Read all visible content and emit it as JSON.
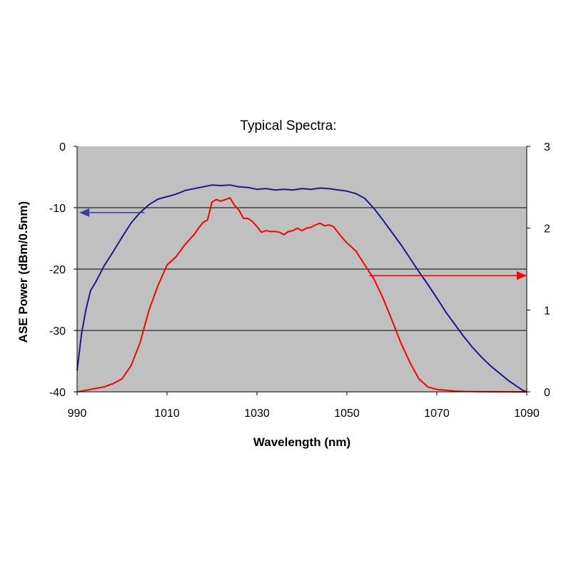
{
  "chart_data": {
    "type": "line",
    "title": "Typical Spectra:",
    "xlabel": "Wavelength (nm)",
    "ylabel": "ASE Power (dBm/0.5nm)",
    "y2label": "",
    "xlim": [
      990,
      1090
    ],
    "ylim": [
      -40,
      0
    ],
    "y2lim": [
      0,
      3
    ],
    "x_ticks": [
      990,
      1010,
      1030,
      1050,
      1070,
      1090
    ],
    "y_ticks": [
      0,
      -10,
      -20,
      -30,
      -40
    ],
    "y2_ticks": [
      3,
      2,
      1,
      0
    ],
    "grid": "horizontal",
    "plot_background": "#c0c0c0",
    "series": [
      {
        "axis": "left",
        "color": "#1a1a8c",
        "x": [
          990,
          991,
          992,
          993,
          994,
          996,
          998,
          1000,
          1002,
          1004,
          1006,
          1008,
          1010,
          1012,
          1014,
          1016,
          1018,
          1020,
          1022,
          1024,
          1026,
          1028,
          1030,
          1032,
          1034,
          1036,
          1038,
          1040,
          1042,
          1044,
          1046,
          1048,
          1050,
          1052,
          1054,
          1056,
          1058,
          1060,
          1062,
          1064,
          1066,
          1068,
          1070,
          1072,
          1074,
          1076,
          1078,
          1080,
          1082,
          1084,
          1086,
          1088,
          1089,
          1090
        ],
        "y": [
          -36.5,
          -30.5,
          -26.5,
          -23.5,
          -22.3,
          -19.5,
          -17.2,
          -14.8,
          -12.5,
          -10.8,
          -9.5,
          -8.6,
          -8.2,
          -7.8,
          -7.2,
          -6.9,
          -6.6,
          -6.3,
          -6.4,
          -6.3,
          -6.6,
          -6.7,
          -7.0,
          -6.9,
          -7.1,
          -7.0,
          -7.1,
          -6.9,
          -7.0,
          -6.8,
          -6.9,
          -7.1,
          -7.3,
          -7.7,
          -8.5,
          -10.1,
          -12.0,
          -14.0,
          -16.0,
          -18.2,
          -20.4,
          -22.5,
          -24.7,
          -27.0,
          -29.0,
          -31.0,
          -32.8,
          -34.4,
          -35.8,
          -37.0,
          -38.2,
          -39.2,
          -39.7,
          -40.0
        ]
      },
      {
        "axis": "right",
        "color": "#ff0000",
        "x": [
          990,
          992,
          994,
          996,
          998,
          1000,
          1002,
          1004,
          1006,
          1008,
          1010,
          1012,
          1014,
          1016,
          1017,
          1018,
          1019,
          1020,
          1021,
          1022,
          1023,
          1024,
          1025,
          1026,
          1027,
          1028,
          1029,
          1030,
          1031,
          1032,
          1033,
          1034,
          1035,
          1036,
          1037,
          1038,
          1039,
          1040,
          1041,
          1042,
          1043,
          1044,
          1045,
          1046,
          1047,
          1048,
          1049,
          1050,
          1052,
          1054,
          1056,
          1058,
          1060,
          1062,
          1064,
          1066,
          1068,
          1070,
          1072,
          1074,
          1076,
          1080,
          1085,
          1088,
          1090
        ],
        "y": [
          0.0,
          0.02,
          0.04,
          0.06,
          0.1,
          0.16,
          0.32,
          0.6,
          1.0,
          1.3,
          1.55,
          1.65,
          1.8,
          1.92,
          2.0,
          2.07,
          2.1,
          2.32,
          2.35,
          2.33,
          2.35,
          2.37,
          2.28,
          2.22,
          2.12,
          2.12,
          2.08,
          2.02,
          1.95,
          1.97,
          1.96,
          1.96,
          1.95,
          1.92,
          1.96,
          1.97,
          2.0,
          1.97,
          2.0,
          2.01,
          2.04,
          2.06,
          2.03,
          2.04,
          2.02,
          1.95,
          1.88,
          1.82,
          1.72,
          1.55,
          1.38,
          1.15,
          0.88,
          0.6,
          0.36,
          0.16,
          0.06,
          0.03,
          0.02,
          0.01,
          0.005,
          0.002,
          0.001,
          0.0,
          0.0
        ]
      }
    ],
    "annotations": [
      {
        "type": "arrow",
        "axis": "left",
        "from": [
          1005,
          -10.8
        ],
        "to": [
          990.5,
          -10.8
        ],
        "color": "#3a3aa8"
      },
      {
        "type": "arrow",
        "axis": "right",
        "from": [
          1055,
          1.42
        ],
        "to": [
          1090,
          1.42
        ],
        "color": "#ff0000"
      }
    ]
  }
}
